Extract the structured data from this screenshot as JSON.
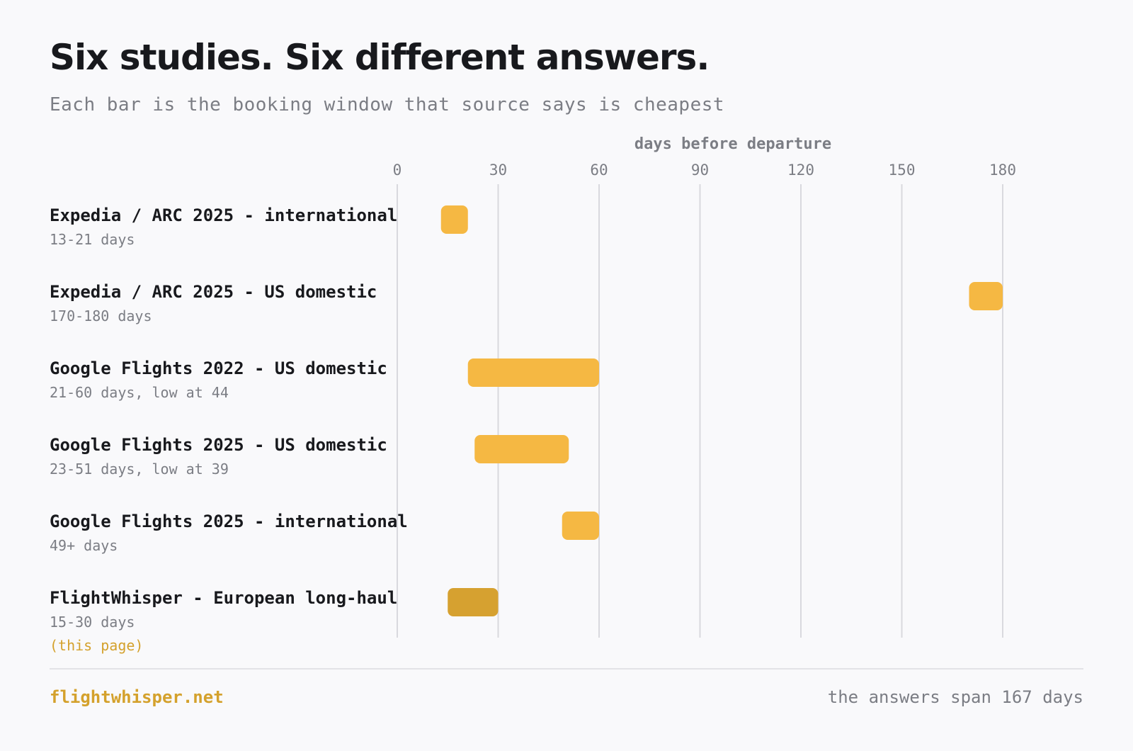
{
  "title": "Six studies. Six different answers.",
  "subtitle": "Each bar is the booking window that source says is cheapest",
  "colors": {
    "bar": "#f5b843",
    "highlight": "#d6a130",
    "accent": "#d4a12c",
    "grid": "#d9d9de",
    "muted": "#7b7d84"
  },
  "chart_data": {
    "type": "bar",
    "orientation": "horizontal-range",
    "xlabel": "days before departure",
    "xlim": [
      0,
      180
    ],
    "xticks": [
      0,
      30,
      60,
      90,
      120,
      150,
      180
    ],
    "grid": true,
    "rows": [
      {
        "label": "Expedia / ARC 2025 - international",
        "note": "13-21 days",
        "start": 13,
        "end": 21,
        "highlight": false
      },
      {
        "label": "Expedia / ARC 2025 - US domestic",
        "note": "170-180 days",
        "start": 170,
        "end": 180,
        "highlight": false
      },
      {
        "label": "Google Flights 2022 - US domestic",
        "note": "21-60 days, low at 44",
        "start": 21,
        "end": 60,
        "highlight": false
      },
      {
        "label": "Google Flights 2025 - US domestic",
        "note": "23-51 days, low at 39",
        "start": 23,
        "end": 51,
        "highlight": false
      },
      {
        "label": "Google Flights 2025 - international",
        "note": "49+ days",
        "start": 49,
        "end": 60,
        "highlight": false
      },
      {
        "label": "FlightWhisper - European long-haul",
        "note": "15-30 days",
        "extra": "(this page)",
        "start": 15,
        "end": 30,
        "highlight": true
      }
    ]
  },
  "footer": {
    "site": "flightwhisper.net",
    "summary": "the answers span 167 days"
  }
}
